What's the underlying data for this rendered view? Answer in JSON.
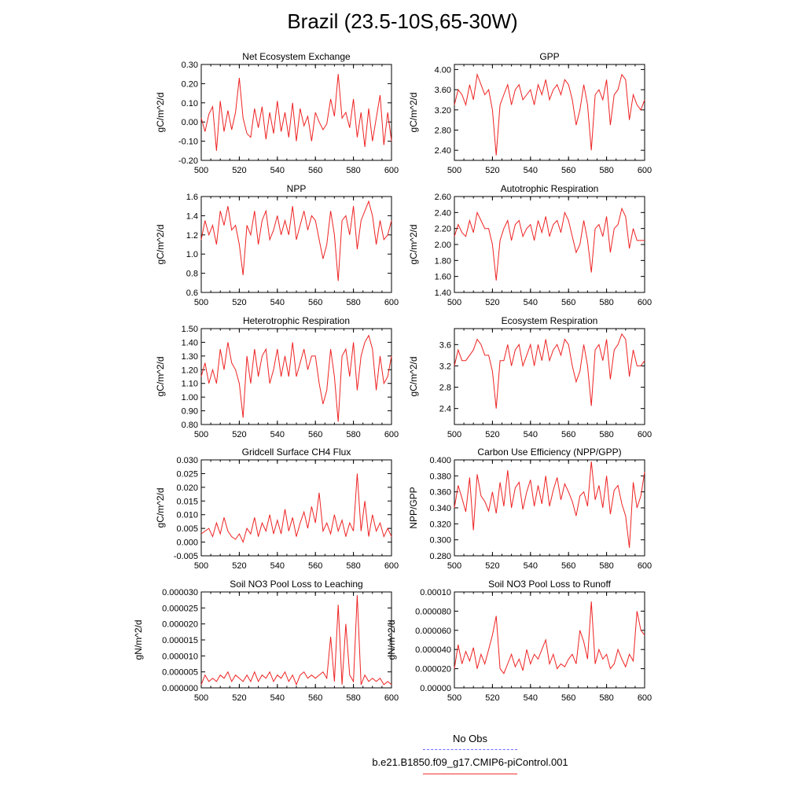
{
  "title": "Brazil (23.5-10S,65-30W)",
  "legend": {
    "obs_label": "No Obs",
    "case_label": "b.e21.B1850.f09_g17.CMIP6-piControl.001",
    "obs_color": "#6a6aff",
    "case_color": "#ee2222"
  },
  "chart_data": [
    {
      "type": "line",
      "title": "Net Ecosystem Exchange",
      "ylabel": "gC/m^2/d",
      "xlim": [
        500,
        600
      ],
      "ylim": [
        -0.2,
        0.3
      ],
      "xticks": [
        "500",
        "520",
        "540",
        "560",
        "580",
        "600"
      ],
      "yticks": [
        "-0.20",
        "-0.10",
        "0.00",
        "0.10",
        "0.20",
        "0.30"
      ],
      "x": [
        500,
        502,
        504,
        506,
        508,
        510,
        512,
        514,
        516,
        518,
        520,
        522,
        524,
        526,
        528,
        530,
        532,
        534,
        536,
        538,
        540,
        542,
        544,
        546,
        548,
        550,
        552,
        554,
        556,
        558,
        560,
        562,
        564,
        566,
        568,
        570,
        572,
        574,
        576,
        578,
        580,
        582,
        584,
        586,
        588,
        590,
        592,
        594,
        596,
        598,
        600
      ],
      "y": [
        0.02,
        -0.05,
        0.04,
        0.08,
        -0.15,
        0.11,
        -0.05,
        0.06,
        -0.04,
        0.05,
        0.23,
        0.02,
        -0.06,
        -0.08,
        0.07,
        -0.03,
        0.08,
        -0.09,
        0.05,
        -0.06,
        0.11,
        -0.05,
        0.05,
        -0.08,
        0.1,
        -0.1,
        0.07,
        -0.02,
        0.03,
        -0.1,
        0.05,
        0.0,
        -0.04,
        -0.01,
        0.12,
        0.03,
        0.25,
        0.02,
        0.05,
        -0.03,
        0.12,
        -0.08,
        0.05,
        -0.13,
        0.07,
        -0.1,
        0.02,
        0.14,
        -0.12,
        0.05,
        -0.1
      ]
    },
    {
      "type": "line",
      "title": "GPP",
      "ylabel": "gC/m^2/d",
      "xlim": [
        500,
        600
      ],
      "ylim": [
        2.2,
        4.1
      ],
      "xticks": [
        "500",
        "520",
        "540",
        "560",
        "580",
        "600"
      ],
      "yticks": [
        "2.40",
        "2.80",
        "3.20",
        "3.60",
        "4.00"
      ],
      "x": [
        500,
        502,
        504,
        506,
        508,
        510,
        512,
        514,
        516,
        518,
        520,
        522,
        524,
        526,
        528,
        530,
        532,
        534,
        536,
        538,
        540,
        542,
        544,
        546,
        548,
        550,
        552,
        554,
        556,
        558,
        560,
        562,
        564,
        566,
        568,
        570,
        572,
        574,
        576,
        578,
        580,
        582,
        584,
        586,
        588,
        590,
        592,
        594,
        596,
        598,
        600
      ],
      "y": [
        3.3,
        3.6,
        3.5,
        3.3,
        3.7,
        3.4,
        3.9,
        3.7,
        3.5,
        3.6,
        3.2,
        2.3,
        3.3,
        3.5,
        3.7,
        3.3,
        3.6,
        3.7,
        3.4,
        3.5,
        3.6,
        3.3,
        3.7,
        3.5,
        3.8,
        3.4,
        3.6,
        3.7,
        3.5,
        3.8,
        3.7,
        3.4,
        2.9,
        3.2,
        3.7,
        3.3,
        2.4,
        3.5,
        3.6,
        3.4,
        3.8,
        2.9,
        3.5,
        3.6,
        3.9,
        3.8,
        3.0,
        3.5,
        3.3,
        3.2,
        3.4
      ]
    },
    {
      "type": "line",
      "title": "NPP",
      "ylabel": "gC/m^2/d",
      "xlim": [
        500,
        600
      ],
      "ylim": [
        0.6,
        1.6
      ],
      "xticks": [
        "500",
        "520",
        "540",
        "560",
        "580",
        "600"
      ],
      "yticks": [
        "0.6",
        "0.8",
        "1.0",
        "1.2",
        "1.4",
        "1.6"
      ],
      "x": [
        500,
        502,
        504,
        506,
        508,
        510,
        512,
        514,
        516,
        518,
        520,
        522,
        524,
        526,
        528,
        530,
        532,
        534,
        536,
        538,
        540,
        542,
        544,
        546,
        548,
        550,
        552,
        554,
        556,
        558,
        560,
        562,
        564,
        566,
        568,
        570,
        572,
        574,
        576,
        578,
        580,
        582,
        584,
        586,
        588,
        590,
        592,
        594,
        596,
        598,
        600
      ],
      "y": [
        1.15,
        1.35,
        1.2,
        1.3,
        1.1,
        1.45,
        1.3,
        1.5,
        1.25,
        1.3,
        1.1,
        0.78,
        1.3,
        1.2,
        1.45,
        1.1,
        1.35,
        1.45,
        1.15,
        1.25,
        1.4,
        1.2,
        1.35,
        1.2,
        1.5,
        1.15,
        1.3,
        1.45,
        1.25,
        1.4,
        1.35,
        1.15,
        0.95,
        1.1,
        1.45,
        1.2,
        0.72,
        1.35,
        1.4,
        1.2,
        1.5,
        1.05,
        1.35,
        1.45,
        1.55,
        1.4,
        1.1,
        1.35,
        1.15,
        1.2,
        1.35
      ]
    },
    {
      "type": "line",
      "title": "Autotrophic Respiration",
      "ylabel": "gC/m^2/d",
      "xlim": [
        500,
        600
      ],
      "ylim": [
        1.4,
        2.6
      ],
      "xticks": [
        "500",
        "520",
        "540",
        "560",
        "580",
        "600"
      ],
      "yticks": [
        "1.40",
        "1.60",
        "1.80",
        "2.00",
        "2.20",
        "2.40",
        "2.60"
      ],
      "x": [
        500,
        502,
        504,
        506,
        508,
        510,
        512,
        514,
        516,
        518,
        520,
        522,
        524,
        526,
        528,
        530,
        532,
        534,
        536,
        538,
        540,
        542,
        544,
        546,
        548,
        550,
        552,
        554,
        556,
        558,
        560,
        562,
        564,
        566,
        568,
        570,
        572,
        574,
        576,
        578,
        580,
        582,
        584,
        586,
        588,
        590,
        592,
        594,
        596,
        598,
        600
      ],
      "y": [
        2.1,
        2.25,
        2.15,
        2.1,
        2.3,
        2.15,
        2.4,
        2.3,
        2.2,
        2.2,
        2.0,
        1.55,
        2.05,
        2.2,
        2.3,
        2.05,
        2.25,
        2.3,
        2.1,
        2.2,
        2.25,
        2.05,
        2.3,
        2.15,
        2.35,
        2.1,
        2.25,
        2.3,
        2.15,
        2.4,
        2.3,
        2.1,
        1.9,
        2.0,
        2.3,
        2.05,
        1.65,
        2.2,
        2.25,
        2.1,
        2.35,
        1.9,
        2.2,
        2.25,
        2.45,
        2.35,
        1.95,
        2.2,
        2.05,
        2.05,
        2.05
      ]
    },
    {
      "type": "line",
      "title": "Heterotrophic Respiration",
      "ylabel": "gC/m^2/d",
      "xlim": [
        500,
        600
      ],
      "ylim": [
        0.8,
        1.5
      ],
      "xticks": [
        "500",
        "520",
        "540",
        "560",
        "580",
        "600"
      ],
      "yticks": [
        "0.80",
        "0.90",
        "1.00",
        "1.10",
        "1.20",
        "1.30",
        "1.40",
        "1.50"
      ],
      "x": [
        500,
        502,
        504,
        506,
        508,
        510,
        512,
        514,
        516,
        518,
        520,
        522,
        524,
        526,
        528,
        530,
        532,
        534,
        536,
        538,
        540,
        542,
        544,
        546,
        548,
        550,
        552,
        554,
        556,
        558,
        560,
        562,
        564,
        566,
        568,
        570,
        572,
        574,
        576,
        578,
        580,
        582,
        584,
        586,
        588,
        590,
        592,
        594,
        596,
        598,
        600
      ],
      "y": [
        1.15,
        1.25,
        1.1,
        1.2,
        1.1,
        1.35,
        1.2,
        1.4,
        1.25,
        1.2,
        1.1,
        0.85,
        1.3,
        1.1,
        1.35,
        1.15,
        1.3,
        1.35,
        1.1,
        1.2,
        1.35,
        1.15,
        1.3,
        1.15,
        1.4,
        1.15,
        1.25,
        1.35,
        1.2,
        1.3,
        1.3,
        1.1,
        0.95,
        1.05,
        1.35,
        1.15,
        0.82,
        1.3,
        1.35,
        1.15,
        1.4,
        1.05,
        1.3,
        1.4,
        1.45,
        1.35,
        1.05,
        1.3,
        1.1,
        1.15,
        1.3
      ]
    },
    {
      "type": "line",
      "title": "Ecosystem Respiration",
      "ylabel": "gC/m^2/d",
      "xlim": [
        500,
        600
      ],
      "ylim": [
        2.1,
        3.9
      ],
      "xticks": [
        "500",
        "520",
        "540",
        "560",
        "580",
        "600"
      ],
      "yticks": [
        "2.4",
        "2.8",
        "3.2",
        "3.6"
      ],
      "x": [
        500,
        502,
        504,
        506,
        508,
        510,
        512,
        514,
        516,
        518,
        520,
        522,
        524,
        526,
        528,
        530,
        532,
        534,
        536,
        538,
        540,
        542,
        544,
        546,
        548,
        550,
        552,
        554,
        556,
        558,
        560,
        562,
        564,
        566,
        568,
        570,
        572,
        574,
        576,
        578,
        580,
        582,
        584,
        586,
        588,
        590,
        592,
        594,
        596,
        598,
        600
      ],
      "y": [
        3.2,
        3.5,
        3.3,
        3.3,
        3.4,
        3.5,
        3.7,
        3.6,
        3.4,
        3.4,
        3.1,
        2.4,
        3.3,
        3.3,
        3.6,
        3.2,
        3.5,
        3.6,
        3.2,
        3.4,
        3.6,
        3.2,
        3.6,
        3.3,
        3.7,
        3.3,
        3.5,
        3.6,
        3.4,
        3.7,
        3.6,
        3.2,
        2.9,
        3.1,
        3.6,
        3.2,
        2.45,
        3.5,
        3.6,
        3.3,
        3.7,
        2.95,
        3.5,
        3.6,
        3.8,
        3.7,
        3.0,
        3.5,
        3.2,
        3.2,
        3.3
      ]
    },
    {
      "type": "line",
      "title": "Gridcell Surface CH4 Flux",
      "ylabel": "gC/m^2/d",
      "xlim": [
        500,
        600
      ],
      "ylim": [
        -0.005,
        0.03
      ],
      "xticks": [
        "500",
        "520",
        "540",
        "560",
        "580",
        "600"
      ],
      "yticks": [
        "-0.005",
        "0.000",
        "0.005",
        "0.010",
        "0.015",
        "0.020",
        "0.025",
        "0.030"
      ],
      "x": [
        500,
        502,
        504,
        506,
        508,
        510,
        512,
        514,
        516,
        518,
        520,
        522,
        524,
        526,
        528,
        530,
        532,
        534,
        536,
        538,
        540,
        542,
        544,
        546,
        548,
        550,
        552,
        554,
        556,
        558,
        560,
        562,
        564,
        566,
        568,
        570,
        572,
        574,
        576,
        578,
        580,
        582,
        584,
        586,
        588,
        590,
        592,
        594,
        596,
        598,
        600
      ],
      "y": [
        0.003,
        0.004,
        0.005,
        0.002,
        0.007,
        0.003,
        0.009,
        0.004,
        0.002,
        0.001,
        0.003,
        0.0,
        0.005,
        0.003,
        0.009,
        0.002,
        0.007,
        0.004,
        0.01,
        0.003,
        0.008,
        0.003,
        0.012,
        0.004,
        0.009,
        0.002,
        0.007,
        0.011,
        0.005,
        0.013,
        0.007,
        0.018,
        0.004,
        0.007,
        0.003,
        0.01,
        0.004,
        0.008,
        0.002,
        0.007,
        0.004,
        0.025,
        0.004,
        0.015,
        0.002,
        0.01,
        0.004,
        0.007,
        0.002,
        0.005,
        0.002
      ]
    },
    {
      "type": "line",
      "title": "Carbon Use Efficiency (NPP/GPP)",
      "ylabel": "NPP/GPP",
      "xlim": [
        500,
        600
      ],
      "ylim": [
        0.28,
        0.4
      ],
      "xticks": [
        "500",
        "520",
        "540",
        "560",
        "580",
        "600"
      ],
      "yticks": [
        "0.280",
        "0.300",
        "0.320",
        "0.340",
        "0.360",
        "0.380",
        "0.400"
      ],
      "x": [
        500,
        502,
        504,
        506,
        508,
        510,
        512,
        514,
        516,
        518,
        520,
        522,
        524,
        526,
        528,
        530,
        532,
        534,
        536,
        538,
        540,
        542,
        544,
        546,
        548,
        550,
        552,
        554,
        556,
        558,
        560,
        562,
        564,
        566,
        568,
        570,
        572,
        574,
        576,
        578,
        580,
        582,
        584,
        586,
        588,
        590,
        592,
        594,
        596,
        598,
        600
      ],
      "y": [
        0.34,
        0.368,
        0.352,
        0.335,
        0.378,
        0.312,
        0.382,
        0.355,
        0.348,
        0.336,
        0.36,
        0.333,
        0.372,
        0.342,
        0.387,
        0.34,
        0.365,
        0.372,
        0.338,
        0.36,
        0.375,
        0.342,
        0.368,
        0.345,
        0.38,
        0.342,
        0.362,
        0.378,
        0.35,
        0.37,
        0.36,
        0.348,
        0.33,
        0.355,
        0.36,
        0.342,
        0.398,
        0.35,
        0.368,
        0.34,
        0.38,
        0.332,
        0.362,
        0.368,
        0.345,
        0.33,
        0.29,
        0.372,
        0.34,
        0.355,
        0.385
      ]
    },
    {
      "type": "line",
      "title": "Soil NO3 Pool Loss to Leaching",
      "ylabel": "gN/m^2/d",
      "xlim": [
        500,
        600
      ],
      "ylim": [
        0,
        3e-05
      ],
      "xticks": [
        "500",
        "520",
        "540",
        "560",
        "580",
        "600"
      ],
      "yticks": [
        "0.000000",
        "0.000005",
        "0.000010",
        "0.000015",
        "0.000020",
        "0.000025",
        "0.000030"
      ],
      "x": [
        500,
        502,
        504,
        506,
        508,
        510,
        512,
        514,
        516,
        518,
        520,
        522,
        524,
        526,
        528,
        530,
        532,
        534,
        536,
        538,
        540,
        542,
        544,
        546,
        548,
        550,
        552,
        554,
        556,
        558,
        560,
        562,
        564,
        566,
        568,
        570,
        572,
        574,
        576,
        578,
        580,
        582,
        584,
        586,
        588,
        590,
        592,
        594,
        596,
        598,
        600
      ],
      "y": [
        1e-06,
        4e-06,
        2e-06,
        3e-06,
        2e-06,
        4e-06,
        3e-06,
        5e-06,
        2e-06,
        4e-06,
        3e-06,
        2e-06,
        4e-06,
        2e-06,
        5e-06,
        2e-06,
        4e-06,
        3e-06,
        5e-06,
        2e-06,
        4e-06,
        3e-06,
        5e-06,
        2e-06,
        4e-06,
        1e-06,
        4e-06,
        5e-06,
        3e-06,
        4e-06,
        3e-06,
        4e-06,
        5e-06,
        3e-06,
        1.6e-05,
        2e-06,
        2.6e-05,
        1e-06,
        2e-05,
        4e-06,
        2e-06,
        2.9e-05,
        1e-06,
        4e-06,
        2e-06,
        3e-06,
        2e-06,
        3e-06,
        1e-06,
        2e-06,
        1e-06
      ]
    },
    {
      "type": "line",
      "title": "Soil NO3 Pool Loss to Runoff",
      "ylabel": "gN/m^2/d",
      "xlim": [
        500,
        600
      ],
      "ylim": [
        0,
        0.0001
      ],
      "xticks": [
        "500",
        "520",
        "540",
        "560",
        "580",
        "600"
      ],
      "yticks": [
        "0.00000",
        "0.000020",
        "0.000040",
        "0.000060",
        "0.000080",
        "0.00010"
      ],
      "x": [
        500,
        502,
        504,
        506,
        508,
        510,
        512,
        514,
        516,
        518,
        520,
        522,
        524,
        526,
        528,
        530,
        532,
        534,
        536,
        538,
        540,
        542,
        544,
        546,
        548,
        550,
        552,
        554,
        556,
        558,
        560,
        562,
        564,
        566,
        568,
        570,
        572,
        574,
        576,
        578,
        580,
        582,
        584,
        586,
        588,
        590,
        592,
        594,
        596,
        598,
        600
      ],
      "y": [
        2e-05,
        4.5e-05,
        2.5e-05,
        3.8e-05,
        2.8e-05,
        4.2e-05,
        2e-05,
        3.5e-05,
        2.5e-05,
        4e-05,
        5.5e-05,
        7.5e-05,
        2e-05,
        1.5e-05,
        2.5e-05,
        3.5e-05,
        2.2e-05,
        3e-05,
        1.8e-05,
        4e-05,
        2.5e-05,
        3.5e-05,
        3e-05,
        4e-05,
        5e-05,
        2.5e-05,
        3.5e-05,
        2e-05,
        2.5e-05,
        2.2e-05,
        3e-05,
        3.5e-05,
        2.5e-05,
        6e-05,
        4.8e-05,
        3e-05,
        9e-05,
        2.5e-05,
        4e-05,
        3e-05,
        3.5e-05,
        2e-05,
        2.5e-05,
        4e-05,
        3e-05,
        2.2e-05,
        3.5e-05,
        2.8e-05,
        8e-05,
        6e-05,
        5.5e-05
      ]
    }
  ]
}
